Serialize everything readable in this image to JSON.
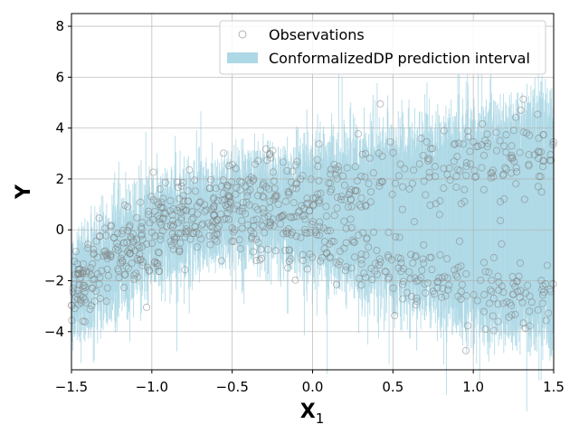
{
  "chart_data": {
    "type": "scatter",
    "title": "",
    "xlabel": "X",
    "xlabel_subscript": "1",
    "ylabel": "Y",
    "xlim": [
      -1.5,
      1.5
    ],
    "ylim": [
      -5.5,
      8.5
    ],
    "x_ticks": [
      -1.5,
      -1.0,
      -0.5,
      0.0,
      0.5,
      1.0,
      1.5
    ],
    "x_tick_labels": [
      "−1.5",
      "−1.0",
      "−0.5",
      "0.0",
      "0.5",
      "1.0",
      "1.5"
    ],
    "y_ticks": [
      -4,
      -2,
      0,
      2,
      4,
      6,
      8
    ],
    "y_tick_labels": [
      "−4",
      "−2",
      "0",
      "2",
      "4",
      "6",
      "8"
    ],
    "grid": true,
    "legend_position": "top-right",
    "series": [
      {
        "name": "Observations",
        "kind": "scatter",
        "marker": "open-circle",
        "color": "#808080",
        "branches": [
          {
            "x": [
              -1.5,
              -1.0,
              -0.5,
              0.0,
              0.5,
              1.0,
              1.5
            ],
            "y": [
              -2.2,
              0.3,
              1.2,
              1.5,
              2.0,
              2.6,
              3.3
            ],
            "spread": 1.0
          },
          {
            "x": [
              -1.5,
              -1.0,
              -0.5,
              0.0,
              0.5,
              1.0,
              1.5
            ],
            "y": [
              -2.6,
              -0.4,
              0.4,
              -0.2,
              -1.5,
              -2.4,
              -2.8
            ],
            "spread": 1.0
          }
        ],
        "n_points": 900
      },
      {
        "name": "ConformalizedDP prediction interval",
        "kind": "interval",
        "color": "#add8e6",
        "upper": {
          "x": [
            -1.5,
            -1.0,
            -0.5,
            0.0,
            0.5,
            1.0,
            1.5
          ],
          "y": [
            -0.8,
            1.5,
            2.3,
            3.0,
            3.6,
            4.2,
            5.0
          ]
        },
        "lower": {
          "x": [
            -1.5,
            -1.0,
            -0.5,
            0.0,
            0.5,
            1.0,
            1.5
          ],
          "y": [
            -4.2,
            -1.8,
            -0.7,
            -1.2,
            -2.6,
            -3.6,
            -4.2
          ]
        }
      }
    ]
  }
}
